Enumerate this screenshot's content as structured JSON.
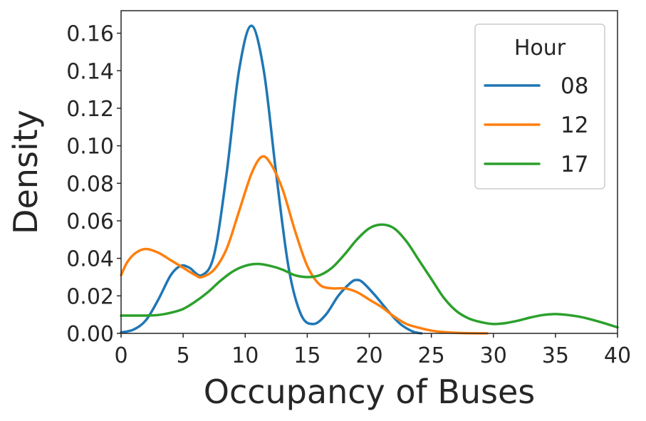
{
  "chart_data": {
    "type": "line",
    "xlabel": "Occupancy of Buses",
    "ylabel": "Density",
    "xlim": [
      0,
      40
    ],
    "ylim": [
      0,
      0.172
    ],
    "xticks": [
      0,
      5,
      10,
      15,
      20,
      25,
      30,
      35,
      40
    ],
    "xtick_labels": [
      "0",
      "5",
      "10",
      "15",
      "20",
      "25",
      "30",
      "35",
      "40"
    ],
    "yticks": [
      0,
      0.02,
      0.04,
      0.06,
      0.08,
      0.1,
      0.12,
      0.14,
      0.16
    ],
    "ytick_labels": [
      "0.00",
      "0.02",
      "0.04",
      "0.06",
      "0.08",
      "0.10",
      "0.12",
      "0.14",
      "0.16"
    ],
    "grid": false,
    "legend": {
      "title": "Hour",
      "placement": "top-right"
    },
    "series": [
      {
        "name": "08",
        "color": "#1f77b4",
        "points": [
          [
            0,
            0.0005
          ],
          [
            1,
            0.002
          ],
          [
            2,
            0.007
          ],
          [
            3,
            0.018
          ],
          [
            4,
            0.031
          ],
          [
            4.8,
            0.036
          ],
          [
            5.5,
            0.035
          ],
          [
            6.5,
            0.031
          ],
          [
            7.5,
            0.042
          ],
          [
            8.5,
            0.085
          ],
          [
            9.5,
            0.14
          ],
          [
            10.5,
            0.164
          ],
          [
            11.5,
            0.14
          ],
          [
            12.5,
            0.085
          ],
          [
            13.5,
            0.035
          ],
          [
            14.5,
            0.01
          ],
          [
            15.5,
            0.005
          ],
          [
            16.5,
            0.01
          ],
          [
            17.5,
            0.02
          ],
          [
            18.5,
            0.027
          ],
          [
            19,
            0.0285
          ],
          [
            19.5,
            0.027
          ],
          [
            20.5,
            0.02
          ],
          [
            21.5,
            0.012
          ],
          [
            22.5,
            0.005
          ],
          [
            23.5,
            0.001
          ],
          [
            24.2,
            0.0
          ]
        ]
      },
      {
        "name": "12",
        "color": "#ff7f0e",
        "points": [
          [
            0,
            0.031
          ],
          [
            0.5,
            0.038
          ],
          [
            1.2,
            0.043
          ],
          [
            2,
            0.045
          ],
          [
            3,
            0.043
          ],
          [
            4,
            0.039
          ],
          [
            5,
            0.035
          ],
          [
            6,
            0.031
          ],
          [
            6.5,
            0.03
          ],
          [
            7.5,
            0.034
          ],
          [
            8.5,
            0.045
          ],
          [
            9.5,
            0.065
          ],
          [
            10.5,
            0.085
          ],
          [
            11.3,
            0.094
          ],
          [
            12,
            0.091
          ],
          [
            13,
            0.077
          ],
          [
            14,
            0.055
          ],
          [
            15,
            0.036
          ],
          [
            16,
            0.026
          ],
          [
            17,
            0.024
          ],
          [
            18,
            0.024
          ],
          [
            19,
            0.022
          ],
          [
            20,
            0.018
          ],
          [
            21,
            0.014
          ],
          [
            22,
            0.009
          ],
          [
            23,
            0.005
          ],
          [
            24,
            0.003
          ],
          [
            25,
            0.0015
          ],
          [
            26,
            0.0007
          ],
          [
            27,
            0.0003
          ],
          [
            28,
            0.0001
          ],
          [
            29.5,
            0.0
          ]
        ]
      },
      {
        "name": "17",
        "color": "#2ca02c",
        "points": [
          [
            0,
            0.0095
          ],
          [
            1,
            0.0095
          ],
          [
            2,
            0.0095
          ],
          [
            3,
            0.0098
          ],
          [
            4,
            0.011
          ],
          [
            5,
            0.013
          ],
          [
            6,
            0.017
          ],
          [
            7,
            0.022
          ],
          [
            8,
            0.028
          ],
          [
            9,
            0.033
          ],
          [
            10,
            0.036
          ],
          [
            11,
            0.037
          ],
          [
            12,
            0.036
          ],
          [
            13,
            0.034
          ],
          [
            14,
            0.031
          ],
          [
            15,
            0.03
          ],
          [
            16,
            0.031
          ],
          [
            17,
            0.035
          ],
          [
            18,
            0.042
          ],
          [
            19,
            0.05
          ],
          [
            20,
            0.056
          ],
          [
            21,
            0.058
          ],
          [
            22,
            0.056
          ],
          [
            23,
            0.049
          ],
          [
            24,
            0.039
          ],
          [
            25,
            0.029
          ],
          [
            26,
            0.019
          ],
          [
            27,
            0.012
          ],
          [
            28,
            0.008
          ],
          [
            29,
            0.006
          ],
          [
            30,
            0.005
          ],
          [
            31,
            0.0055
          ],
          [
            32,
            0.0068
          ],
          [
            33,
            0.0085
          ],
          [
            34,
            0.0098
          ],
          [
            35,
            0.0103
          ],
          [
            36,
            0.0098
          ],
          [
            37,
            0.0088
          ],
          [
            38,
            0.0072
          ],
          [
            39,
            0.0053
          ],
          [
            40,
            0.0032
          ]
        ]
      }
    ]
  }
}
